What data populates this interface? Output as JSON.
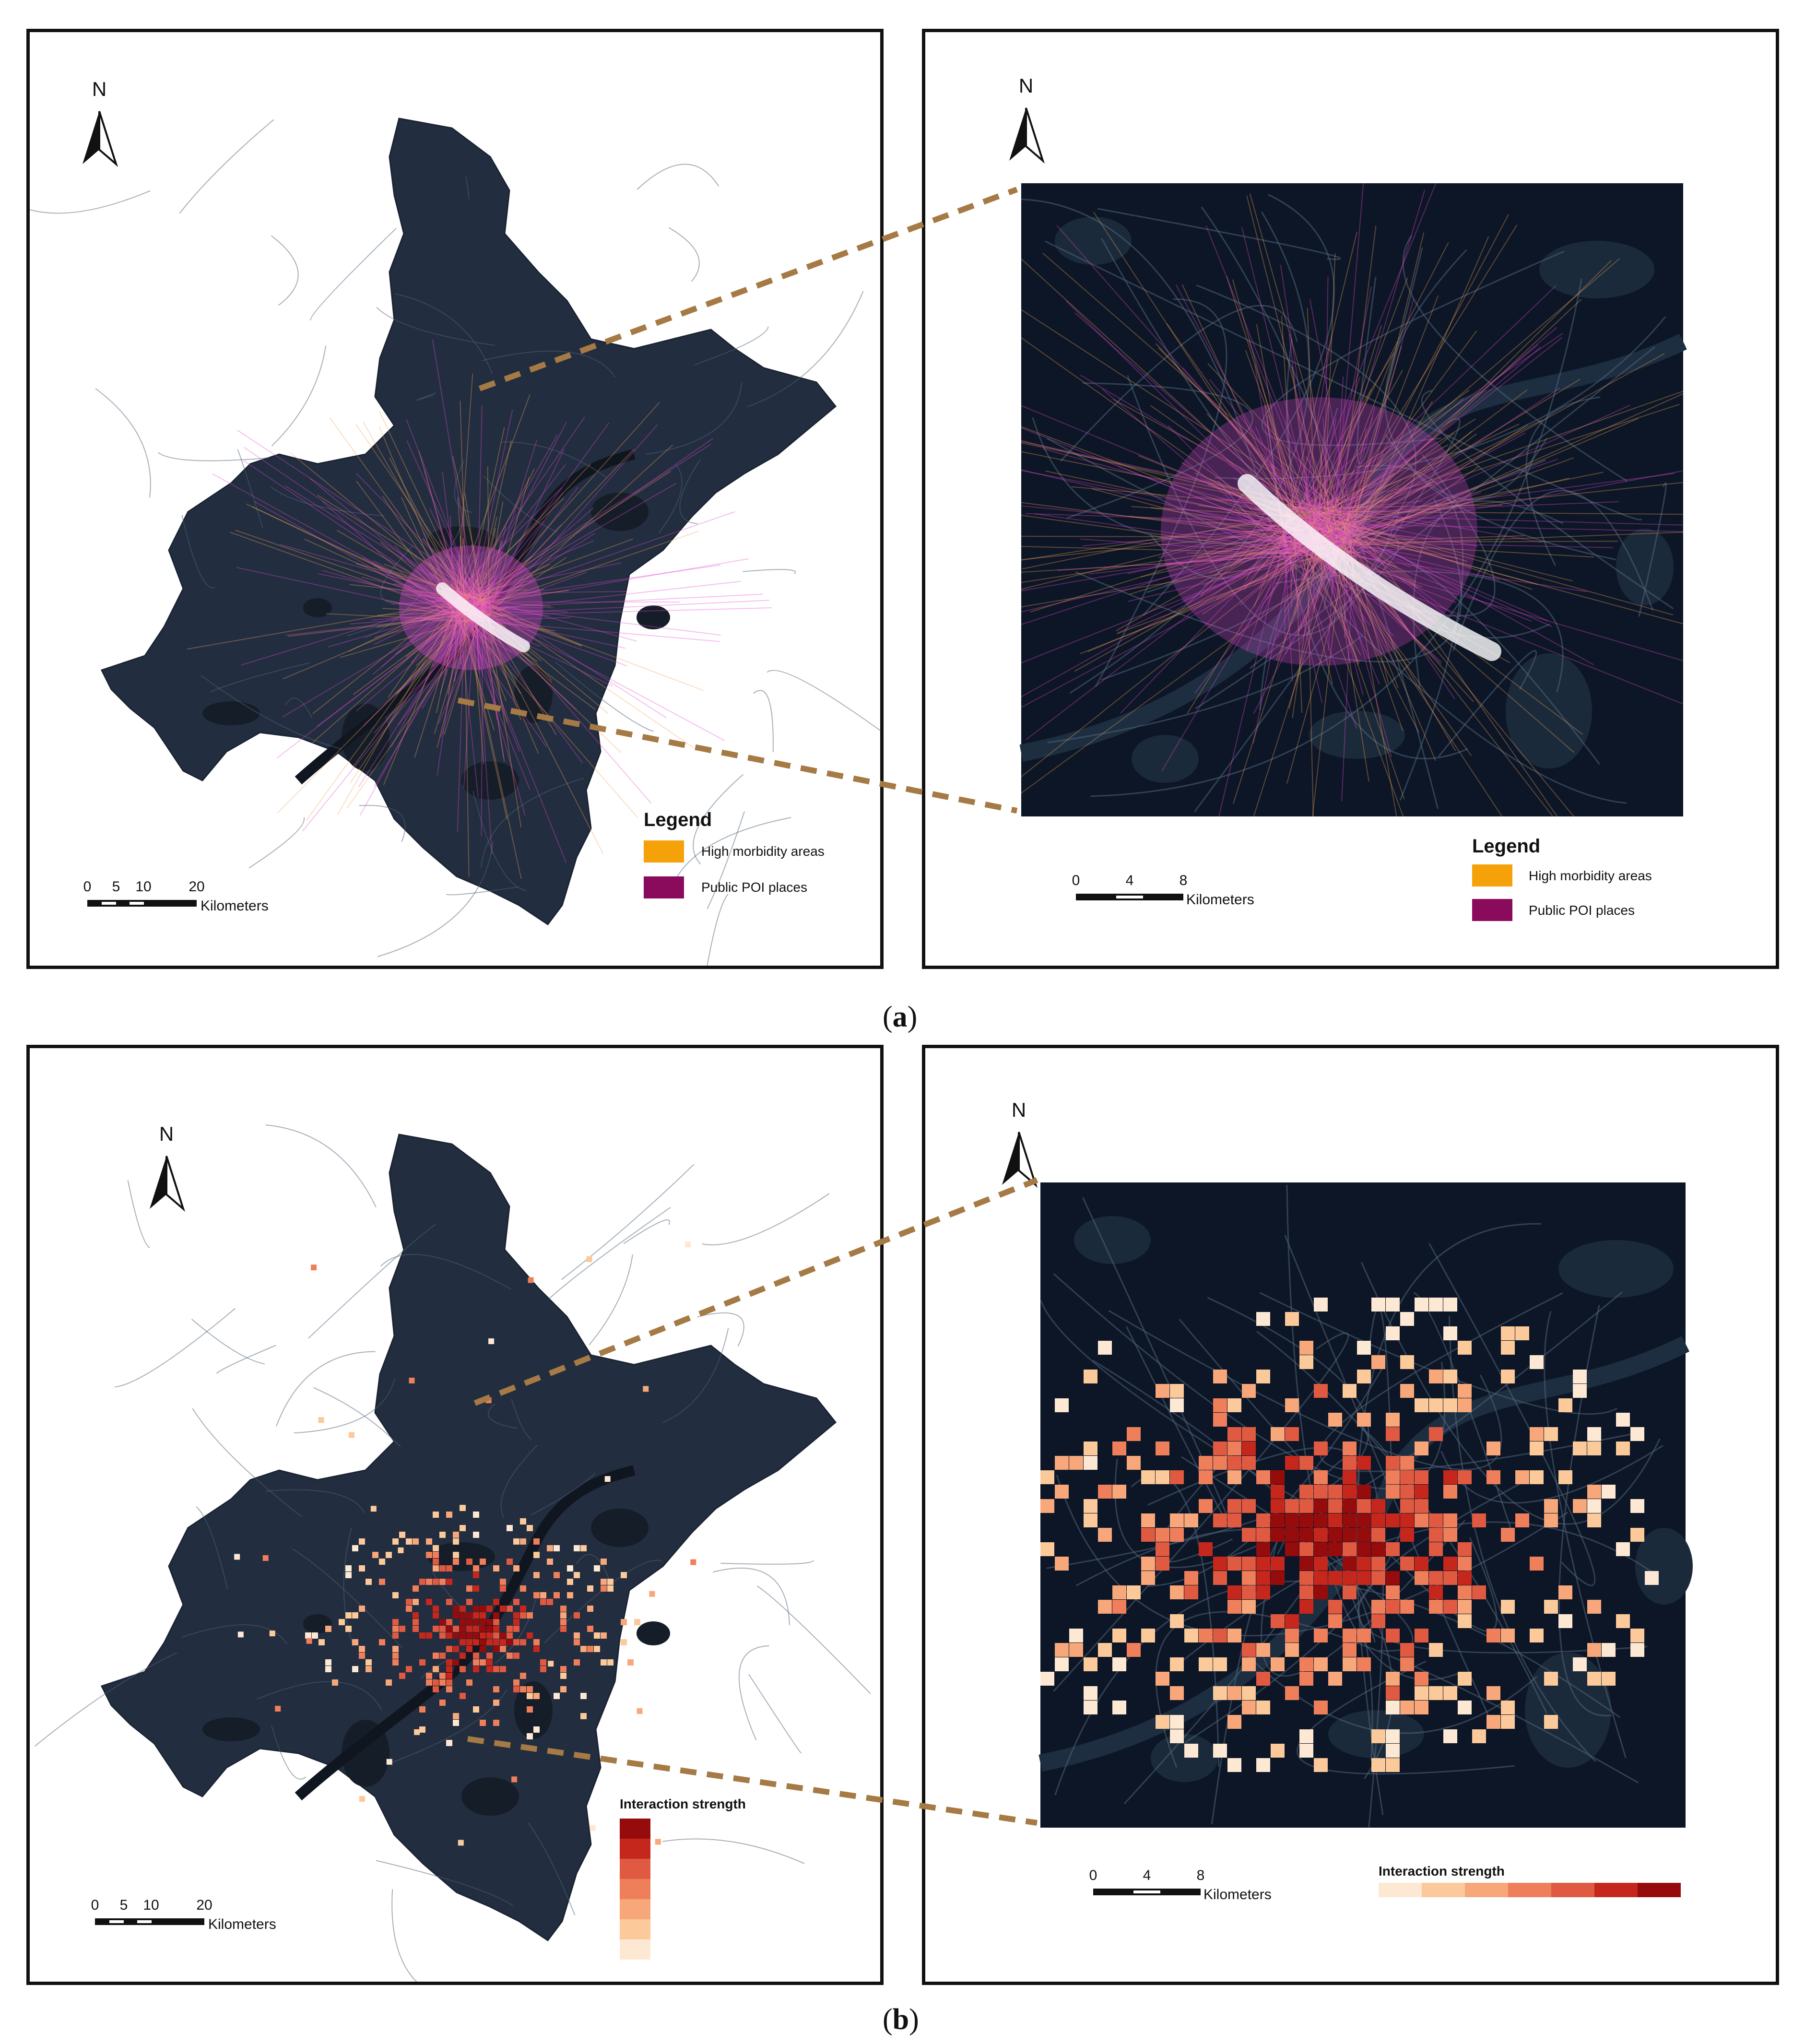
{
  "panel_a": {
    "caption_label": "a",
    "overview": {
      "north_label": "N",
      "scale": {
        "ticks": [
          "0",
          "5",
          "10",
          "20"
        ],
        "unit": "Kilometers"
      },
      "legend": {
        "title": "Legend",
        "items": [
          {
            "label": "High morbidity areas",
            "color": "#f5a10a"
          },
          {
            "label": "Public POI places",
            "color": "#8a0b5b"
          }
        ]
      }
    },
    "zoom": {
      "north_label": "N",
      "scale": {
        "ticks": [
          "0",
          "4",
          "8"
        ],
        "unit": "Kilometers"
      },
      "legend": {
        "title": "Legend",
        "items": [
          {
            "label": "High morbidity areas",
            "color": "#f5a10a"
          },
          {
            "label": "Public POI places",
            "color": "#8a0b5b"
          }
        ]
      }
    }
  },
  "panel_b": {
    "caption_label": "b",
    "overview": {
      "north_label": "N",
      "scale": {
        "ticks": [
          "0",
          "5",
          "10",
          "20"
        ],
        "unit": "Kilometers"
      },
      "ramp": {
        "title": "Interaction strength",
        "colors": [
          "#fde8d4",
          "#fbc99a",
          "#f7a77a",
          "#ef7f5b",
          "#e05a42",
          "#c6271c",
          "#960b0b"
        ]
      }
    },
    "zoom": {
      "north_label": "N",
      "scale": {
        "ticks": [
          "0",
          "4",
          "8"
        ],
        "unit": "Kilometers"
      },
      "ramp": {
        "title": "Interaction strength",
        "colors": [
          "#fde8d4",
          "#fbc99a",
          "#f7a77a",
          "#ef7f5b",
          "#e05a42",
          "#c6271c",
          "#960b0b"
        ]
      }
    }
  },
  "colors": {
    "land": "#222d3f",
    "zoom_background": "#0d1626",
    "water": "#121a28",
    "roads": "#4f6478",
    "connector": "#a57a45",
    "flow_magenta": "#e34bcf",
    "flow_orange": "#f0a35a"
  }
}
